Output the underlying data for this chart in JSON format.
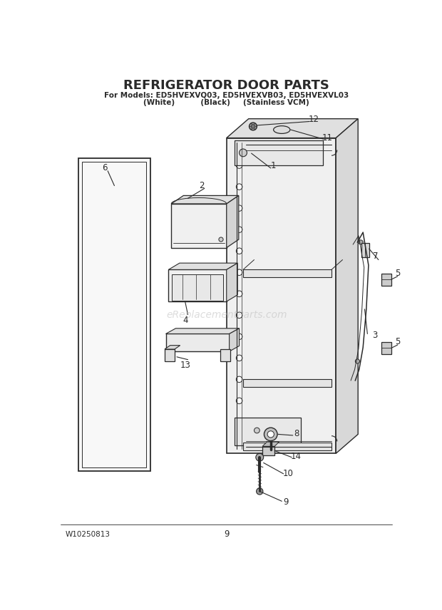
{
  "title": "REFRIGERATOR DOOR PARTS",
  "subtitle1": "For Models: ED5HVEXVQ03, ED5HVEXVB03, ED5HVEXVL03",
  "subtitle2": "(White)          (Black)     (Stainless VCM)",
  "footer_left": "W10250813",
  "footer_center": "9",
  "watermark": "eReplacementParts.com",
  "bg_color": "#ffffff",
  "line_color": "#2a2a2a"
}
